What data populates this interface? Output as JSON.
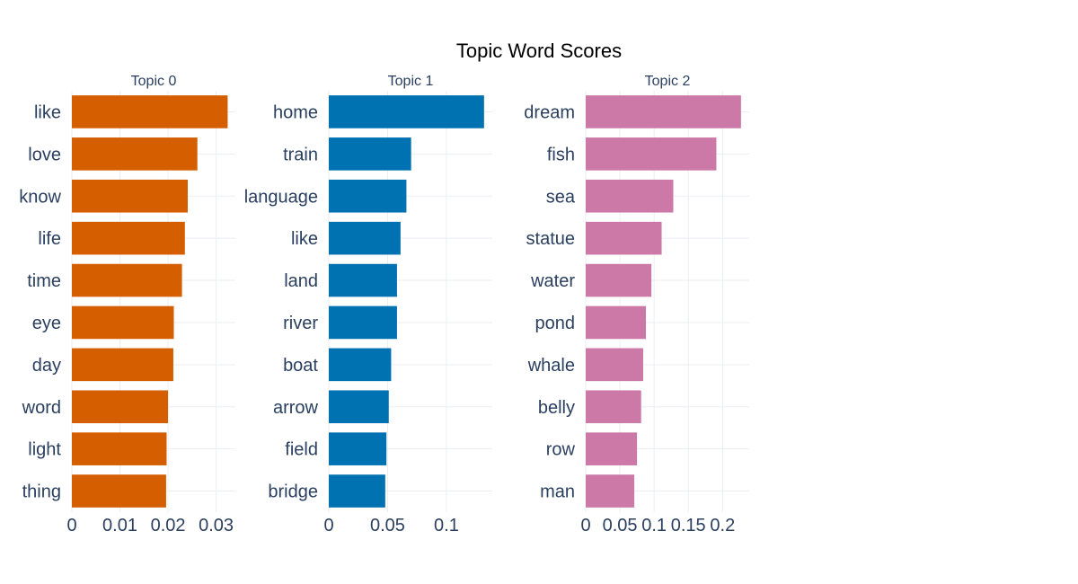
{
  "title": "Topic Word Scores",
  "chart_data": [
    {
      "type": "bar",
      "orientation": "horizontal",
      "title": "Topic 0",
      "color": "#D55E00",
      "categories": [
        "like",
        "love",
        "know",
        "life",
        "time",
        "eye",
        "day",
        "word",
        "light",
        "thing"
      ],
      "values": [
        0.0324,
        0.0261,
        0.0241,
        0.0235,
        0.0229,
        0.0212,
        0.0211,
        0.02,
        0.0197,
        0.0196
      ],
      "xlim": [
        0,
        0.034
      ],
      "xticks": [
        0,
        0.01,
        0.02,
        0.03
      ],
      "xtick_labels": [
        "0",
        "0.01",
        "0.02",
        "0.03"
      ],
      "grid": true
    },
    {
      "type": "bar",
      "orientation": "horizontal",
      "title": "Topic 1",
      "color": "#0072B2",
      "categories": [
        "home",
        "train",
        "language",
        "like",
        "land",
        "river",
        "boat",
        "arrow",
        "field",
        "bridge"
      ],
      "values": [
        0.132,
        0.07,
        0.066,
        0.061,
        0.058,
        0.058,
        0.053,
        0.051,
        0.049,
        0.048
      ],
      "xlim": [
        0,
        0.139
      ],
      "xticks": [
        0,
        0.05,
        0.1
      ],
      "xtick_labels": [
        "0",
        "0.05",
        "0.1"
      ],
      "grid": true
    },
    {
      "type": "bar",
      "orientation": "horizontal",
      "title": "Topic 2",
      "color": "#CC79A7",
      "categories": [
        "dream",
        "fish",
        "sea",
        "statue",
        "water",
        "pond",
        "whale",
        "belly",
        "row",
        "man"
      ],
      "values": [
        0.227,
        0.191,
        0.128,
        0.111,
        0.096,
        0.088,
        0.084,
        0.081,
        0.075,
        0.071
      ],
      "xlim": [
        0,
        0.239
      ],
      "xticks": [
        0,
        0.05,
        0.1,
        0.15,
        0.2
      ],
      "xtick_labels": [
        "0",
        "0.05",
        "0.1",
        "0.15",
        "0.2"
      ],
      "grid": true
    }
  ]
}
